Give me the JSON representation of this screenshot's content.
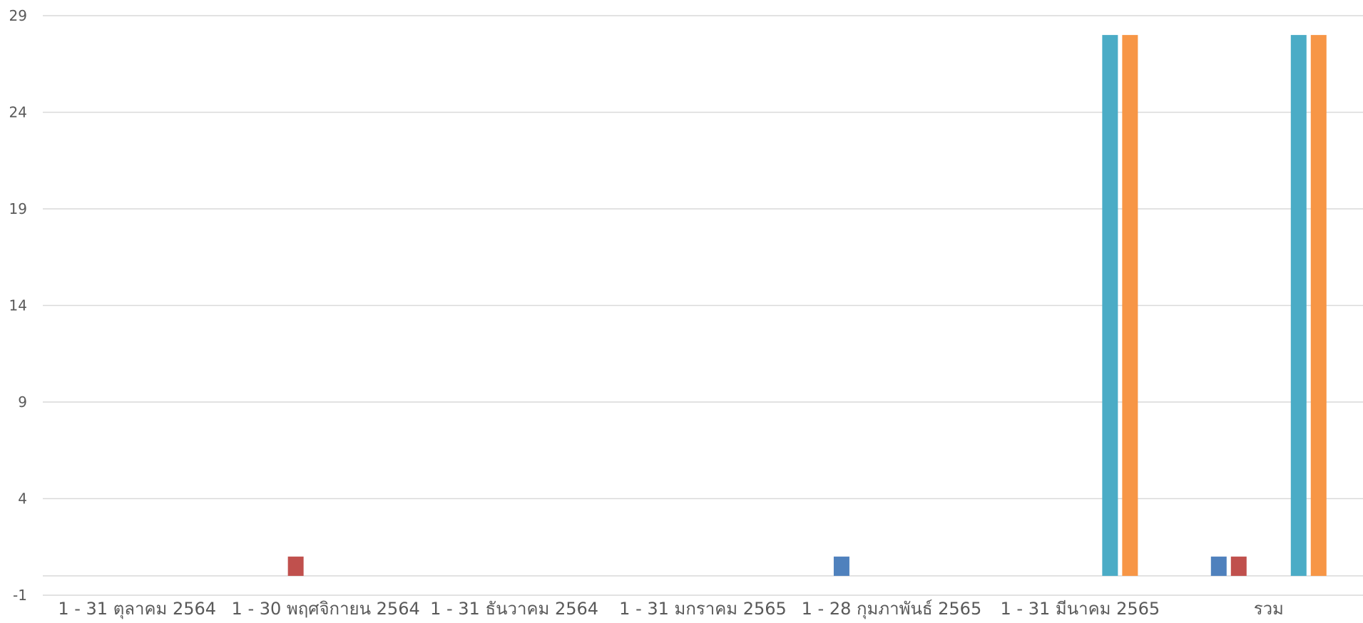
{
  "chart_data": {
    "type": "bar",
    "categories": [
      "1 - 31 ตุลาคม 2564",
      "1 - 30 พฤศจิกายน 2564",
      "1 - 31 ธันวาคม 2564",
      "1 - 31 มกราคม 2565",
      "1 - 28 กุมภาพันธ์ 2565",
      "1 - 31 มีนาคม 2565",
      "รวม"
    ],
    "series": [
      {
        "color": "#4F81BD",
        "values": [
          0,
          0,
          0,
          0,
          1,
          0,
          1
        ]
      },
      {
        "color": "#C0504D",
        "values": [
          0,
          1,
          0,
          0,
          0,
          0,
          1
        ]
      },
      {
        "color": "#9BBB59",
        "values": [
          0,
          0,
          0,
          0,
          0,
          0,
          0
        ]
      },
      {
        "color": "#8064A2",
        "values": [
          0,
          0,
          0,
          0,
          0,
          0,
          0
        ]
      },
      {
        "color": "#4BACC6",
        "values": [
          0,
          0,
          0,
          0,
          0,
          28,
          28
        ]
      },
      {
        "color": "#F79646",
        "values": [
          0,
          0,
          0,
          0,
          0,
          28,
          28
        ]
      }
    ],
    "yticks": [
      "-1",
      "4",
      "9",
      "14",
      "19",
      "24",
      "29"
    ],
    "ylim": [
      -1,
      29
    ],
    "baseline": 0,
    "grid": true,
    "gridline_color": "#D9D9D9"
  }
}
